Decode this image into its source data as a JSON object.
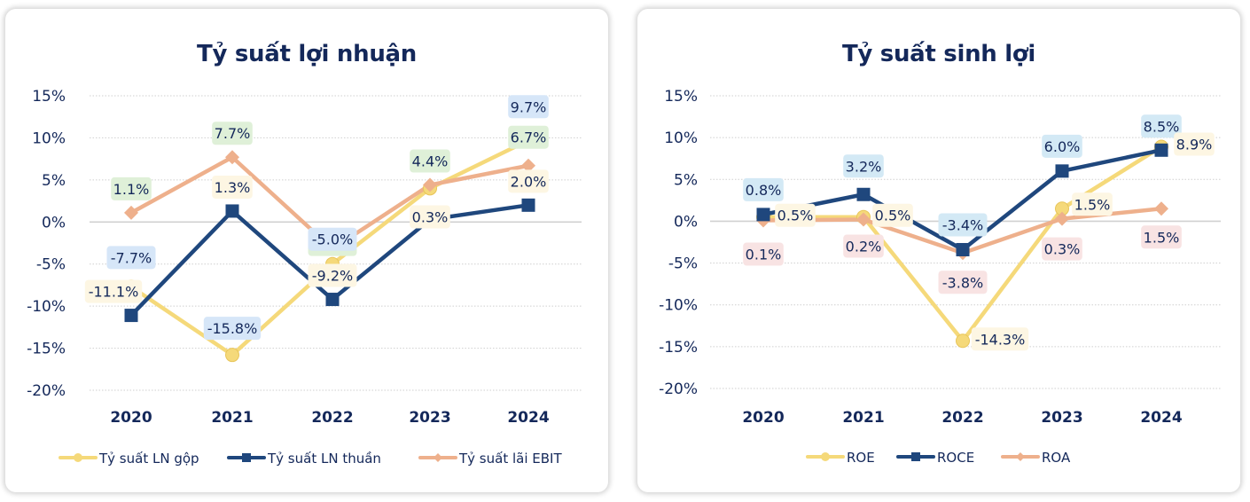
{
  "colors": {
    "text": "#14285a",
    "yellow": "#f5d97a",
    "navy": "#1f477d",
    "salmon": "#eeb08c",
    "grid": "#d4d4d4",
    "label_bg_yellow": "#fdf6e3",
    "label_bg_blue": "#d6e6f8",
    "label_bg_green": "#dff0d8",
    "label_bg_pink": "#f8e3e3",
    "label_bg_lightblue": "#d3e9f5"
  },
  "chart_data": [
    {
      "type": "line",
      "title": "Tỷ suất lợi nhuận",
      "xlabel": "",
      "ylabel": "",
      "categories": [
        "2020",
        "2021",
        "2022",
        "2023",
        "2024"
      ],
      "ylim": [
        -20,
        15
      ],
      "yticks": [
        15,
        10,
        5,
        0,
        -5,
        -10,
        -15,
        -20
      ],
      "ytick_labels": [
        "15%",
        "10%",
        "5%",
        "0%",
        "-5%",
        "-10%",
        "-15%",
        "-20%"
      ],
      "grid": true,
      "legend_position": "bottom",
      "series": [
        {
          "name": "Tỷ suất LN gộp",
          "marker": "circle",
          "color_key": "yellow",
          "label_bg_key": "label_bg_blue",
          "values": [
            -7.7,
            -15.8,
            -5.0,
            4.0,
            9.7
          ],
          "labels": [
            "-7.7%",
            "-15.8%",
            "-5.0%",
            null,
            "9.7%"
          ]
        },
        {
          "name": "Tỷ suất LN thuần",
          "marker": "square",
          "color_key": "navy",
          "label_bg_key": "label_bg_yellow",
          "values": [
            -11.1,
            1.3,
            -9.2,
            0.3,
            2.0
          ],
          "labels": [
            "-11.1%",
            "1.3%",
            "-9.2%",
            "0.3%",
            "2.0%"
          ]
        },
        {
          "name": "Tỷ suất lãi EBIT",
          "marker": "diamond",
          "color_key": "salmon",
          "label_bg_key": "label_bg_green",
          "values": [
            1.1,
            7.7,
            -3.2,
            4.4,
            6.7
          ],
          "labels": [
            "1.1%",
            "7.7%",
            "-3.2%",
            "4.4%",
            "6.7%"
          ]
        }
      ]
    },
    {
      "type": "line",
      "title": "Tỷ suất sinh lợi",
      "xlabel": "",
      "ylabel": "",
      "categories": [
        "2020",
        "2021",
        "2022",
        "2023",
        "2024"
      ],
      "ylim": [
        -20,
        15
      ],
      "yticks": [
        15,
        10,
        5,
        0,
        -5,
        -10,
        -15,
        -20
      ],
      "ytick_labels": [
        "15%",
        "10%",
        "5%",
        "0%",
        "-5%",
        "-10%",
        "-15%",
        "-20%"
      ],
      "grid": true,
      "legend_position": "bottom",
      "series": [
        {
          "name": "ROE",
          "marker": "circle",
          "color_key": "yellow",
          "label_bg_key": "label_bg_yellow",
          "values": [
            0.5,
            0.5,
            -14.3,
            1.5,
            8.9
          ],
          "labels": [
            "0.5%",
            "0.5%",
            "-14.3%",
            "1.5%",
            "8.9%"
          ]
        },
        {
          "name": "ROCE",
          "marker": "square",
          "color_key": "navy",
          "label_bg_key": "label_bg_lightblue",
          "values": [
            0.8,
            3.2,
            -3.4,
            6.0,
            8.5
          ],
          "labels": [
            "0.8%",
            "3.2%",
            "-3.4%",
            "6.0%",
            "8.5%"
          ]
        },
        {
          "name": "ROA",
          "marker": "diamond",
          "color_key": "salmon",
          "label_bg_key": "label_bg_pink",
          "values": [
            0.1,
            0.2,
            -3.8,
            0.3,
            1.5
          ],
          "labels": [
            "0.1%",
            "0.2%",
            "-3.8%",
            "0.3%",
            "1.5%"
          ]
        }
      ]
    }
  ]
}
